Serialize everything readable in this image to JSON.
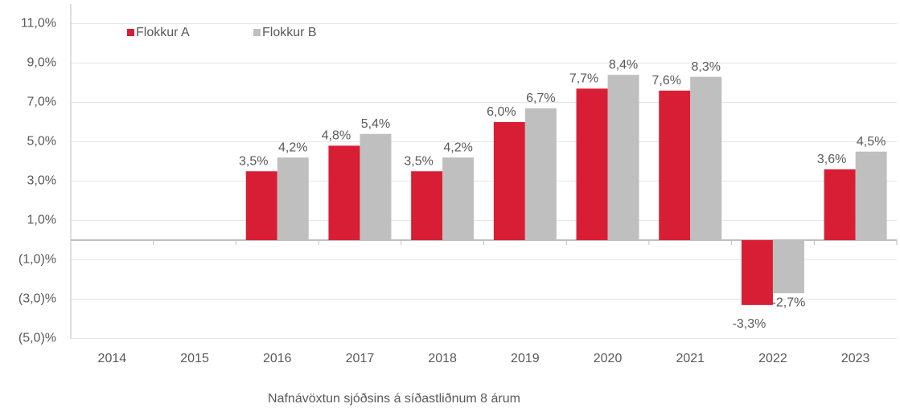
{
  "chart_data": {
    "type": "bar",
    "xlabel": "Nafnávöxtun sjóðsins á síðastliðnum 8 árum",
    "categories": [
      "2014",
      "2015",
      "2016",
      "2017",
      "2018",
      "2019",
      "2020",
      "2021",
      "2022",
      "2023"
    ],
    "series": [
      {
        "name": "Flokkur A",
        "color": "#d81e34",
        "values": [
          null,
          null,
          3.5,
          4.8,
          3.5,
          6.0,
          7.7,
          7.6,
          -3.3,
          3.6
        ],
        "value_labels": [
          null,
          null,
          "3,5%",
          "4,8%",
          "3,5%",
          "6,0%",
          "7,7%",
          "7,6%",
          "-3,3%",
          "3,6%"
        ]
      },
      {
        "name": "Flokkur B",
        "color": "#bfbfbf",
        "values": [
          null,
          null,
          4.2,
          5.4,
          4.2,
          6.7,
          8.4,
          8.3,
          -2.7,
          4.5
        ],
        "value_labels": [
          null,
          null,
          "4,2%",
          "5,4%",
          "4,2%",
          "6,7%",
          "8,4%",
          "8,3%",
          "-2,7%",
          "4,5%"
        ]
      }
    ],
    "ylim": [
      -5,
      12
    ],
    "yticks": [
      {
        "value": -5,
        "label": "(5,0)%"
      },
      {
        "value": -3,
        "label": "(3,0)%"
      },
      {
        "value": -1,
        "label": "(1,0)%"
      },
      {
        "value": 1,
        "label": "1,0%"
      },
      {
        "value": 3,
        "label": "3,0%"
      },
      {
        "value": 5,
        "label": "5,0%"
      },
      {
        "value": 7,
        "label": "7,0%"
      },
      {
        "value": 9,
        "label": "9,0%"
      },
      {
        "value": 11,
        "label": "11,0%"
      }
    ],
    "grid": true,
    "legend": "top-left"
  }
}
